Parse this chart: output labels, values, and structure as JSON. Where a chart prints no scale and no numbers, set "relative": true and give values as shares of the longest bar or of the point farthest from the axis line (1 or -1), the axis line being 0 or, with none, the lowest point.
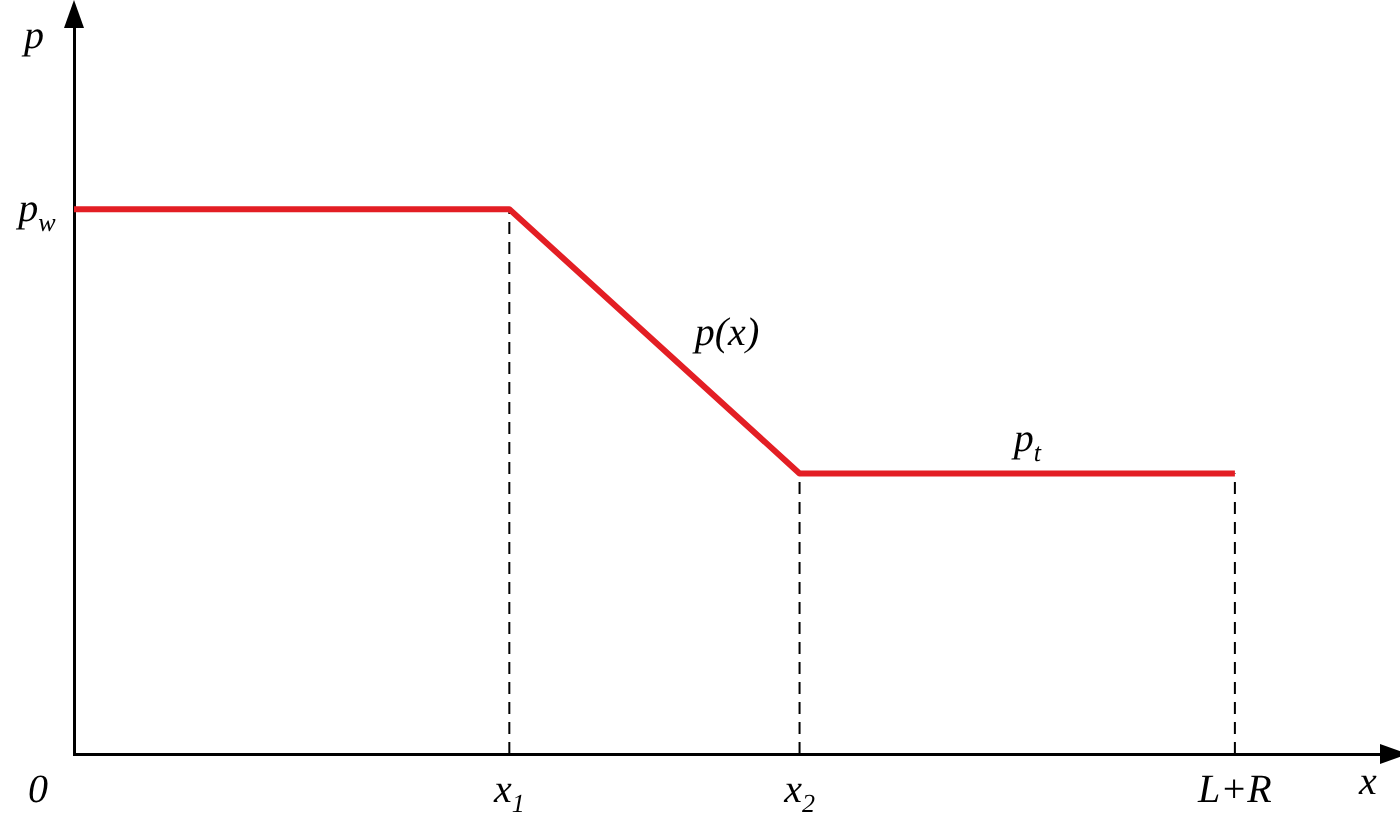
{
  "chart_data": {
    "type": "line",
    "xlabel": "x",
    "ylabel": "p",
    "relative": true,
    "categories": [
      "0",
      null,
      null,
      "x$_{1}$",
      null,
      "x$_{2}$",
      null,
      null,
      "L+R",
      null
    ],
    "series": [
      {
        "color": "#e31e24",
        "values": [
          1,
          null,
          null,
          1,
          null,
          0.515,
          null,
          null,
          0.515,
          null
        ]
      }
    ],
    "ref_lines": [
      {
        "axis": "x",
        "value": "x$_{1}$",
        "line_style": "dashed",
        "color": "#000000"
      },
      {
        "axis": "x",
        "value": "x$_{2}$",
        "line_style": "dashed",
        "color": "#000000"
      },
      {
        "axis": "x",
        "value": "L+R",
        "line_style": "dashed",
        "color": "#000000"
      }
    ],
    "annotations": [
      "p$_{w}$",
      "p(x)",
      "p$_{t}$"
    ],
    "grid": false,
    "legend": false,
    "marker": "none",
    "line_style": "solid"
  }
}
